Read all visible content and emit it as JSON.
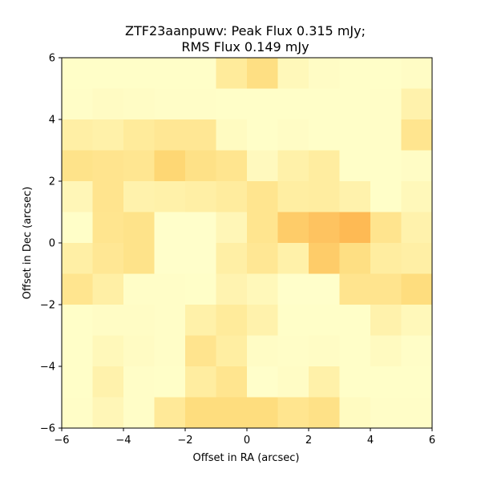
{
  "chart_data": {
    "type": "heatmap",
    "title_lines": [
      "ZTF23aanpuwv: Peak Flux 0.315 mJy;",
      "RMS Flux 0.149 mJy"
    ],
    "xlabel": "Offset in RA (arcsec)",
    "ylabel": "Offset in Dec (arcsec)",
    "xlim": [
      -6,
      6
    ],
    "ylim": [
      -6,
      6
    ],
    "xticks": [
      -6,
      -4,
      -2,
      0,
      2,
      4,
      6
    ],
    "yticks": [
      -6,
      -4,
      -2,
      0,
      2,
      4,
      6
    ],
    "tick_labels_x": [
      "−6",
      "−4",
      "−2",
      "0",
      "2",
      "4",
      "6"
    ],
    "tick_labels_y": [
      "−6",
      "−4",
      "−2",
      "0",
      "2",
      "4",
      "6"
    ],
    "colormap": "YlOrRd-light",
    "grid": false,
    "legend": "none",
    "pixel_size_arcsec": 1,
    "rows_top_to_bottom": [
      [
        0.02,
        0.02,
        0.02,
        0.02,
        0.02,
        0.28,
        0.42,
        0.1,
        0.04,
        0.02,
        0.02,
        0.04
      ],
      [
        0.03,
        0.05,
        0.04,
        0.03,
        0.03,
        0.02,
        0.02,
        0.02,
        0.02,
        0.02,
        0.03,
        0.18
      ],
      [
        0.22,
        0.2,
        0.28,
        0.32,
        0.32,
        0.06,
        0.02,
        0.04,
        0.02,
        0.02,
        0.03,
        0.35
      ],
      [
        0.38,
        0.36,
        0.34,
        0.52,
        0.4,
        0.35,
        0.08,
        0.2,
        0.25,
        0.02,
        0.02,
        0.04
      ],
      [
        0.12,
        0.36,
        0.18,
        0.2,
        0.22,
        0.26,
        0.35,
        0.24,
        0.25,
        0.18,
        0.02,
        0.1
      ],
      [
        0.02,
        0.35,
        0.38,
        0.01,
        0.01,
        0.12,
        0.35,
        0.62,
        0.7,
        0.8,
        0.36,
        0.18
      ],
      [
        0.22,
        0.32,
        0.38,
        0.01,
        0.01,
        0.22,
        0.32,
        0.2,
        0.62,
        0.42,
        0.25,
        0.22
      ],
      [
        0.35,
        0.22,
        0.03,
        0.03,
        0.02,
        0.16,
        0.1,
        0.01,
        0.01,
        0.36,
        0.36,
        0.45
      ],
      [
        0.02,
        0.04,
        0.04,
        0.03,
        0.2,
        0.28,
        0.18,
        0.02,
        0.02,
        0.02,
        0.18,
        0.1
      ],
      [
        0.02,
        0.1,
        0.05,
        0.03,
        0.36,
        0.24,
        0.04,
        0.03,
        0.04,
        0.02,
        0.07,
        0.03
      ],
      [
        0.02,
        0.18,
        0.03,
        0.02,
        0.25,
        0.35,
        0.01,
        0.04,
        0.2,
        0.02,
        0.02,
        0.02
      ],
      [
        0.03,
        0.12,
        0.03,
        0.3,
        0.45,
        0.45,
        0.45,
        0.35,
        0.4,
        0.06,
        0.03,
        0.03
      ]
    ]
  }
}
